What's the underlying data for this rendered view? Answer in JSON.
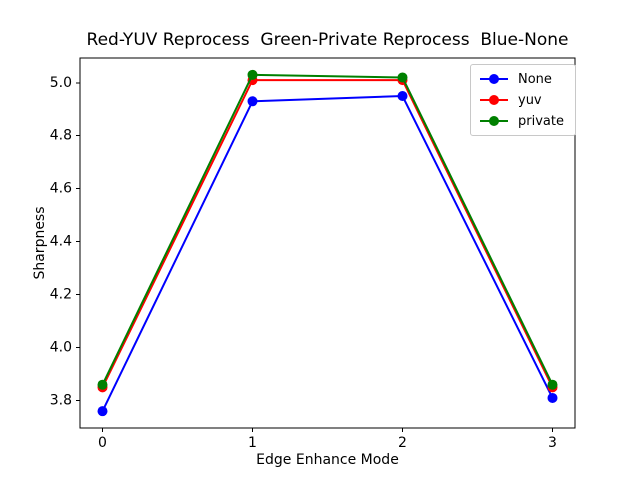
{
  "chart_data": {
    "type": "line",
    "title": "Red-YUV Reprocess  Green-Private Reprocess  Blue-None",
    "xlabel": "Edge Enhance Mode",
    "ylabel": "Sharpness",
    "x": [
      0,
      1,
      2,
      3
    ],
    "xtick_labels": [
      "0",
      "1",
      "2",
      "3"
    ],
    "yticks": [
      3.8,
      4.0,
      4.2,
      4.4,
      4.6,
      4.8,
      5.0
    ],
    "ytick_labels": [
      "3.8",
      "4.0",
      "4.2",
      "4.4",
      "4.6",
      "4.8",
      "5.0"
    ],
    "xlim": [
      -0.15,
      3.15
    ],
    "ylim": [
      3.6965,
      5.0935
    ],
    "grid": false,
    "legend_position": "upper right",
    "series": [
      {
        "name": "None",
        "color": "#0000ff",
        "values": [
          3.76,
          4.93,
          4.95,
          3.81
        ]
      },
      {
        "name": "yuv",
        "color": "#ff0000",
        "values": [
          3.85,
          5.01,
          5.01,
          3.85
        ]
      },
      {
        "name": "private",
        "color": "#008000",
        "values": [
          3.86,
          5.03,
          5.02,
          3.86
        ]
      }
    ],
    "colors": {
      "axis": "#000000",
      "tick_label": "#000000",
      "background": "#ffffff",
      "legend_border": "#c8c8c8"
    }
  }
}
